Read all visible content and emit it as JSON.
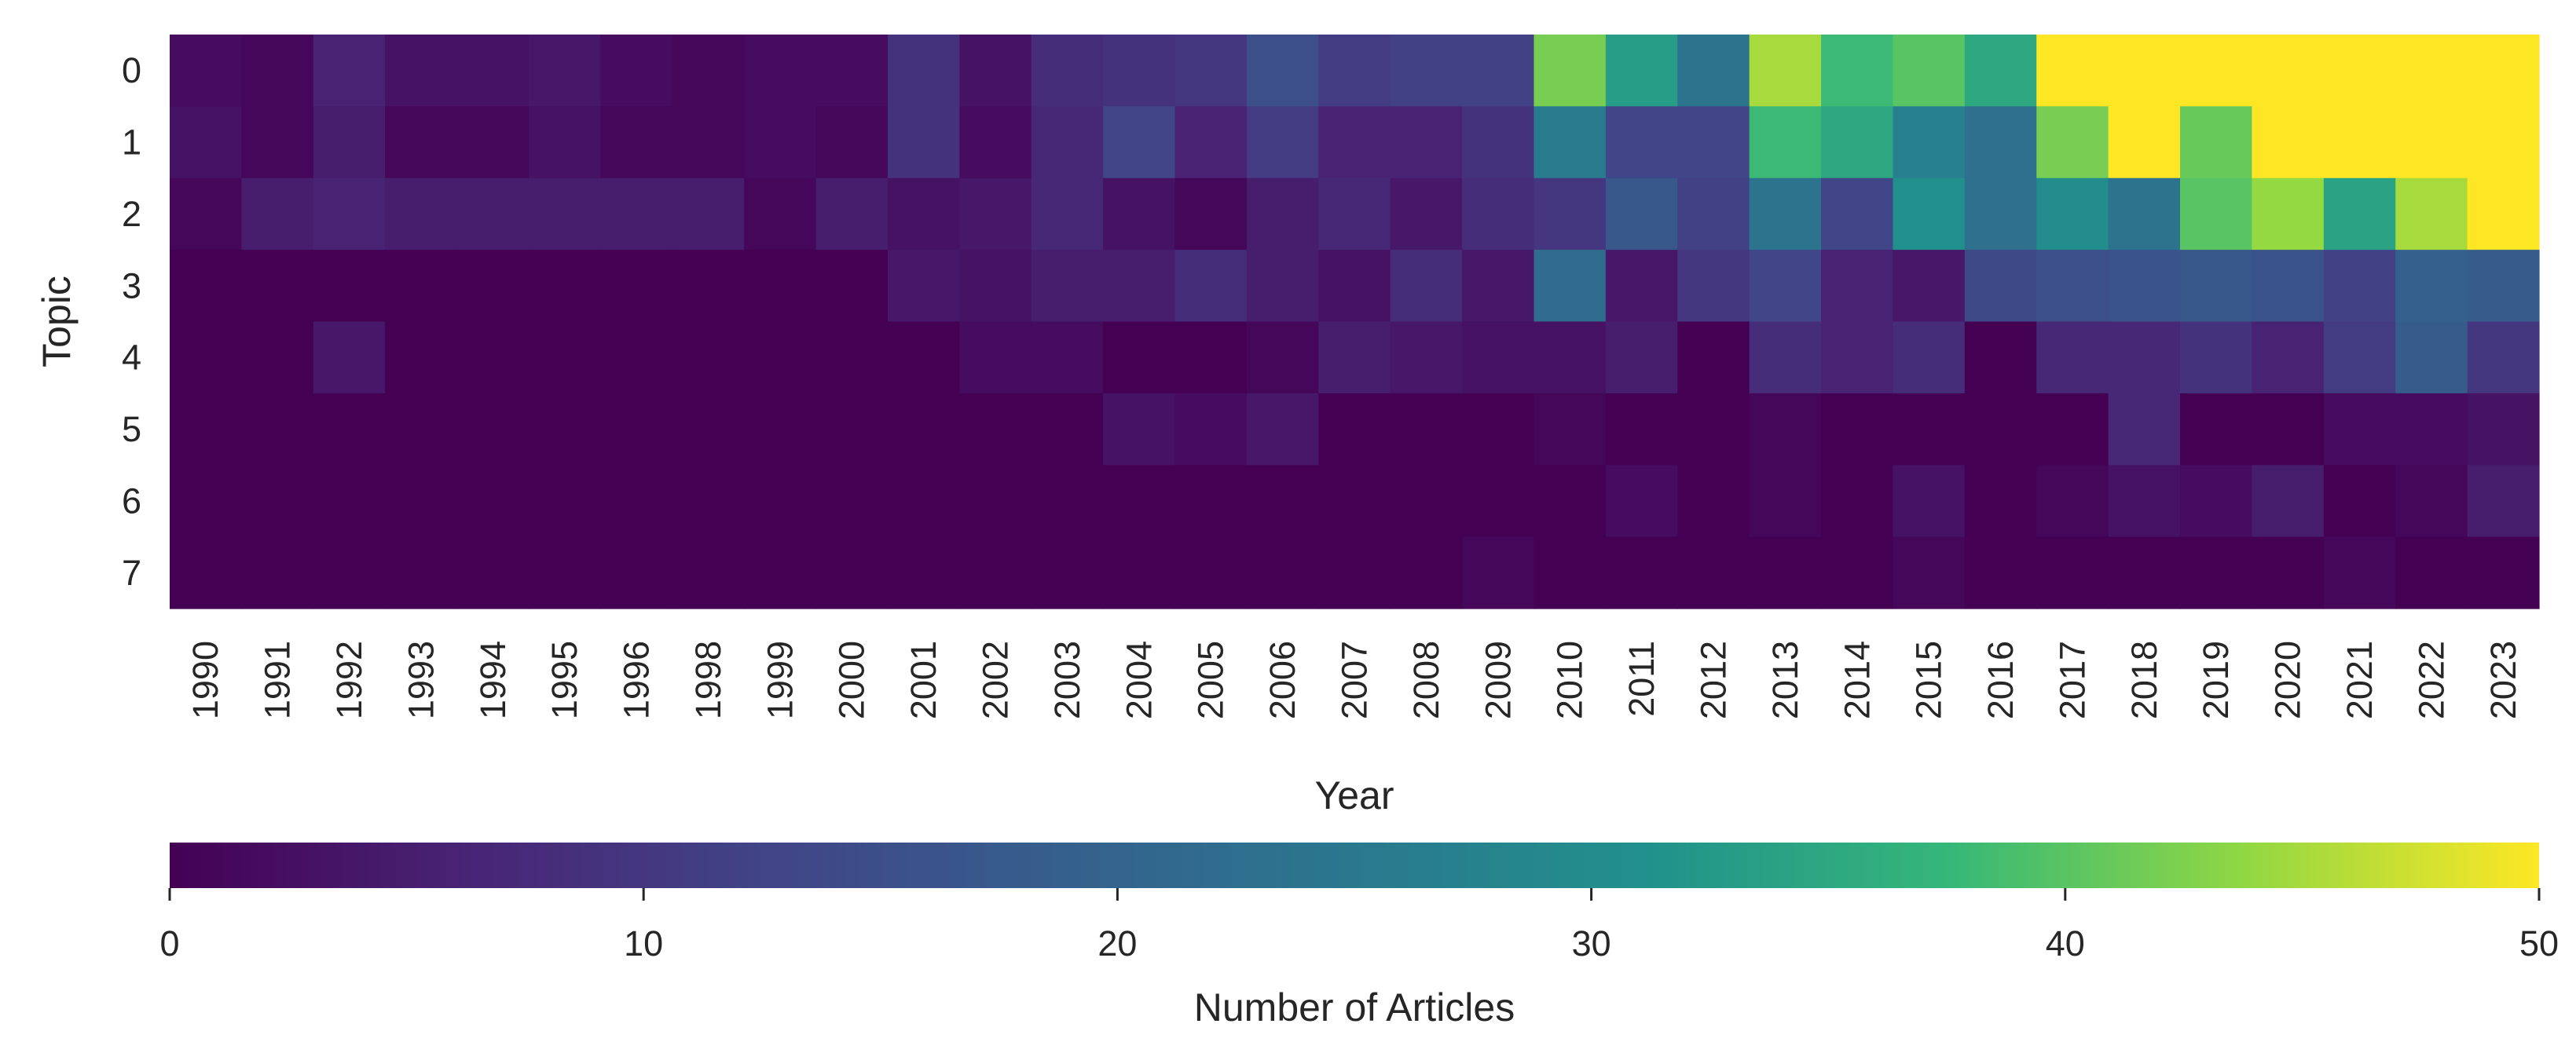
{
  "chart_data": {
    "type": "heatmap",
    "title": "",
    "xlabel": "Year",
    "ylabel": "Topic",
    "x_categories": [
      "1990",
      "1991",
      "1992",
      "1993",
      "1994",
      "1995",
      "1996",
      "1998",
      "1999",
      "2000",
      "2001",
      "2002",
      "2003",
      "2004",
      "2005",
      "2006",
      "2007",
      "2008",
      "2009",
      "2010",
      "2011",
      "2012",
      "2013",
      "2014",
      "2015",
      "2016",
      "2017",
      "2018",
      "2019",
      "2020",
      "2021",
      "2022",
      "2023"
    ],
    "y_categories": [
      "0",
      "1",
      "2",
      "3",
      "4",
      "5",
      "6",
      "7"
    ],
    "values": [
      [
        2,
        1,
        6,
        3,
        3,
        4,
        2,
        1,
        2,
        2,
        9,
        3,
        8,
        9,
        10,
        15,
        11,
        12,
        12,
        42,
        33,
        24,
        45,
        38,
        40,
        35,
        50,
        50,
        50,
        50,
        50,
        50,
        50
      ],
      [
        3,
        1,
        5,
        1,
        1,
        3,
        1,
        1,
        2,
        1,
        9,
        2,
        7,
        13,
        6,
        11,
        6,
        6,
        9,
        26,
        13,
        13,
        38,
        35,
        27,
        23,
        42,
        50,
        41,
        50,
        50,
        50,
        50
      ],
      [
        1,
        5,
        6,
        5,
        5,
        5,
        5,
        5,
        1,
        5,
        3,
        4,
        7,
        3,
        1,
        5,
        7,
        4,
        8,
        10,
        17,
        12,
        24,
        13,
        31,
        23,
        30,
        24,
        40,
        44,
        34,
        45,
        50
      ],
      [
        0,
        0,
        0,
        0,
        0,
        0,
        0,
        0,
        0,
        0,
        4,
        3,
        5,
        5,
        8,
        5,
        3,
        8,
        4,
        22,
        4,
        10,
        13,
        6,
        4,
        14,
        15,
        16,
        17,
        16,
        12,
        19,
        18
      ],
      [
        0,
        0,
        4,
        0,
        0,
        0,
        0,
        0,
        0,
        0,
        0,
        2,
        2,
        0,
        0,
        1,
        5,
        4,
        3,
        3,
        5,
        0,
        8,
        6,
        8,
        0,
        7,
        7,
        9,
        6,
        11,
        18,
        10
      ],
      [
        0,
        0,
        0,
        0,
        0,
        0,
        0,
        0,
        0,
        0,
        0,
        0,
        0,
        3,
        2,
        4,
        0,
        0,
        0,
        1,
        0,
        0,
        1,
        0,
        0,
        0,
        0,
        7,
        0,
        0,
        2,
        2,
        3
      ],
      [
        0,
        0,
        0,
        0,
        0,
        0,
        0,
        0,
        0,
        0,
        0,
        0,
        0,
        0,
        0,
        0,
        0,
        0,
        0,
        0,
        2,
        0,
        1,
        0,
        3,
        0,
        1,
        3,
        2,
        5,
        0,
        1,
        5
      ],
      [
        0,
        0,
        0,
        0,
        0,
        0,
        0,
        0,
        0,
        0,
        0,
        0,
        0,
        0,
        0,
        0,
        0,
        0,
        1,
        0,
        0,
        0,
        0,
        0,
        1,
        0,
        0,
        0,
        0,
        0,
        1,
        0,
        0
      ]
    ],
    "colorbar": {
      "label": "Number of Articles",
      "min": 0,
      "max": 50,
      "ticks": [
        0,
        10,
        20,
        30,
        40,
        50
      ],
      "colormap": "viridis",
      "orientation": "horizontal",
      "placement": "bottom"
    },
    "grid": false,
    "legend": "none"
  }
}
